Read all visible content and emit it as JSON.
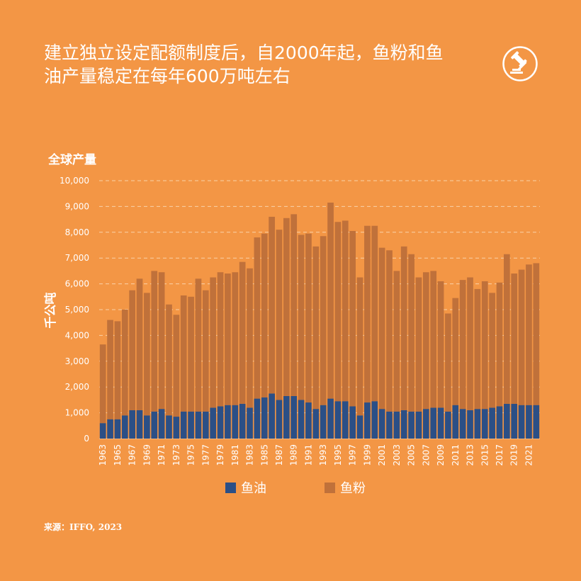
{
  "title_line1": "建立独立设定配额制度后，自2000年起，鱼粉和鱼",
  "title_line2": "油产量稳定在每年600万吨左右",
  "source": "来源：IFFO, 2023",
  "logo_icon": "gavel-icon",
  "colors": {
    "background": "#F39645",
    "fish_oil": "#2B4F86",
    "fish_meal": "#C0713A",
    "grid": "#FAD1A8",
    "text": "#FFFFFF"
  },
  "chart_data": {
    "type": "bar",
    "stacked": true,
    "title": "全球产量",
    "ylabel": "千公吨",
    "xlabel": "",
    "ylim": [
      0,
      10000
    ],
    "yticks": [
      0,
      1000,
      2000,
      3000,
      4000,
      5000,
      6000,
      7000,
      8000,
      9000,
      10000
    ],
    "ytick_labels": [
      "0",
      "1,000",
      "2,000",
      "3,000",
      "4,000",
      "5,000",
      "6,000",
      "7,000",
      "8,000",
      "9,000",
      "10,000"
    ],
    "grid": true,
    "grid_style": "dashed horizontal",
    "legend_position": "bottom",
    "categories": [
      1963,
      1964,
      1965,
      1966,
      1967,
      1968,
      1969,
      1970,
      1971,
      1972,
      1973,
      1974,
      1975,
      1976,
      1977,
      1978,
      1979,
      1980,
      1981,
      1982,
      1983,
      1984,
      1985,
      1986,
      1987,
      1988,
      1989,
      1990,
      1991,
      1992,
      1993,
      1994,
      1995,
      1996,
      1997,
      1998,
      1999,
      2000,
      2001,
      2002,
      2003,
      2004,
      2005,
      2006,
      2007,
      2008,
      2009,
      2010,
      2011,
      2012,
      2013,
      2014,
      2015,
      2016,
      2017,
      2018,
      2019,
      2020,
      2021,
      2022
    ],
    "labeled_ticks": [
      "1963",
      "1965",
      "1967",
      "1969",
      "1971",
      "1973",
      "1975",
      "1977",
      "1979",
      "1981",
      "1983",
      "1985",
      "1987",
      "1989",
      "1991",
      "1993",
      "1995",
      "1997",
      "1999",
      "2001",
      "2003",
      "2005",
      "2007",
      "2009",
      "2011",
      "2013",
      "2015",
      "2017",
      "2019",
      "2021"
    ],
    "series": [
      {
        "name": "鱼油",
        "values": [
          600,
          750,
          750,
          900,
          1100,
          1100,
          900,
          1050,
          1150,
          900,
          850,
          1050,
          1050,
          1050,
          1050,
          1200,
          1250,
          1300,
          1300,
          1350,
          1200,
          1550,
          1600,
          1750,
          1500,
          1650,
          1650,
          1500,
          1400,
          1150,
          1300,
          1550,
          1450,
          1450,
          1250,
          900,
          1400,
          1450,
          1150,
          1050,
          1050,
          1100,
          1050,
          1050,
          1150,
          1200,
          1200,
          1050,
          1300,
          1150,
          1100,
          1150,
          1150,
          1200,
          1250,
          1350,
          1350,
          1300,
          1300,
          1300
        ],
        "color": "#2B4F86"
      },
      {
        "name": "鱼粉",
        "values": [
          3050,
          3850,
          3800,
          4100,
          4650,
          5100,
          4750,
          5450,
          5300,
          4300,
          3950,
          4500,
          4450,
          5150,
          4700,
          5050,
          5200,
          5100,
          5150,
          5500,
          5400,
          6250,
          6350,
          6850,
          6600,
          6900,
          7050,
          6400,
          6550,
          6300,
          6550,
          7600,
          6950,
          7000,
          6800,
          5350,
          6850,
          6800,
          6250,
          6250,
          5450,
          6350,
          6100,
          5200,
          5300,
          5300,
          4900,
          3800,
          4150,
          5000,
          5150,
          4650,
          4950,
          4450,
          4800,
          5800,
          5050,
          5250,
          5450,
          5500
        ],
        "color": "#C0713A"
      }
    ]
  }
}
